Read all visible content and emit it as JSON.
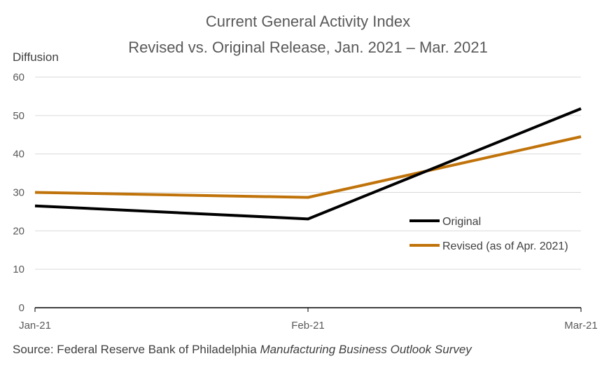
{
  "chart_data": {
    "type": "line",
    "title": "Current General Activity Index",
    "subtitle": "Revised vs. Original Release, Jan. 2021 – Mar. 2021",
    "ylabel": "Diffusion",
    "xlabel": "",
    "categories": [
      "Jan-21",
      "Feb-21",
      "Mar-21"
    ],
    "ylim": [
      0,
      60
    ],
    "yticks": [
      0,
      10,
      20,
      30,
      40,
      50,
      60
    ],
    "grid": true,
    "legend_position": "right",
    "series": [
      {
        "name": "Original",
        "color": "#000000",
        "values": [
          26.5,
          23.1,
          51.8
        ]
      },
      {
        "name": "Revised (as of Apr. 2021)",
        "color": "#c0730a",
        "values": [
          30.0,
          28.7,
          44.5
        ]
      }
    ]
  },
  "source": {
    "prefix": "Source: Federal Reserve Bank of Philadelphia ",
    "italic": "Manufacturing Business Outlook Survey"
  }
}
